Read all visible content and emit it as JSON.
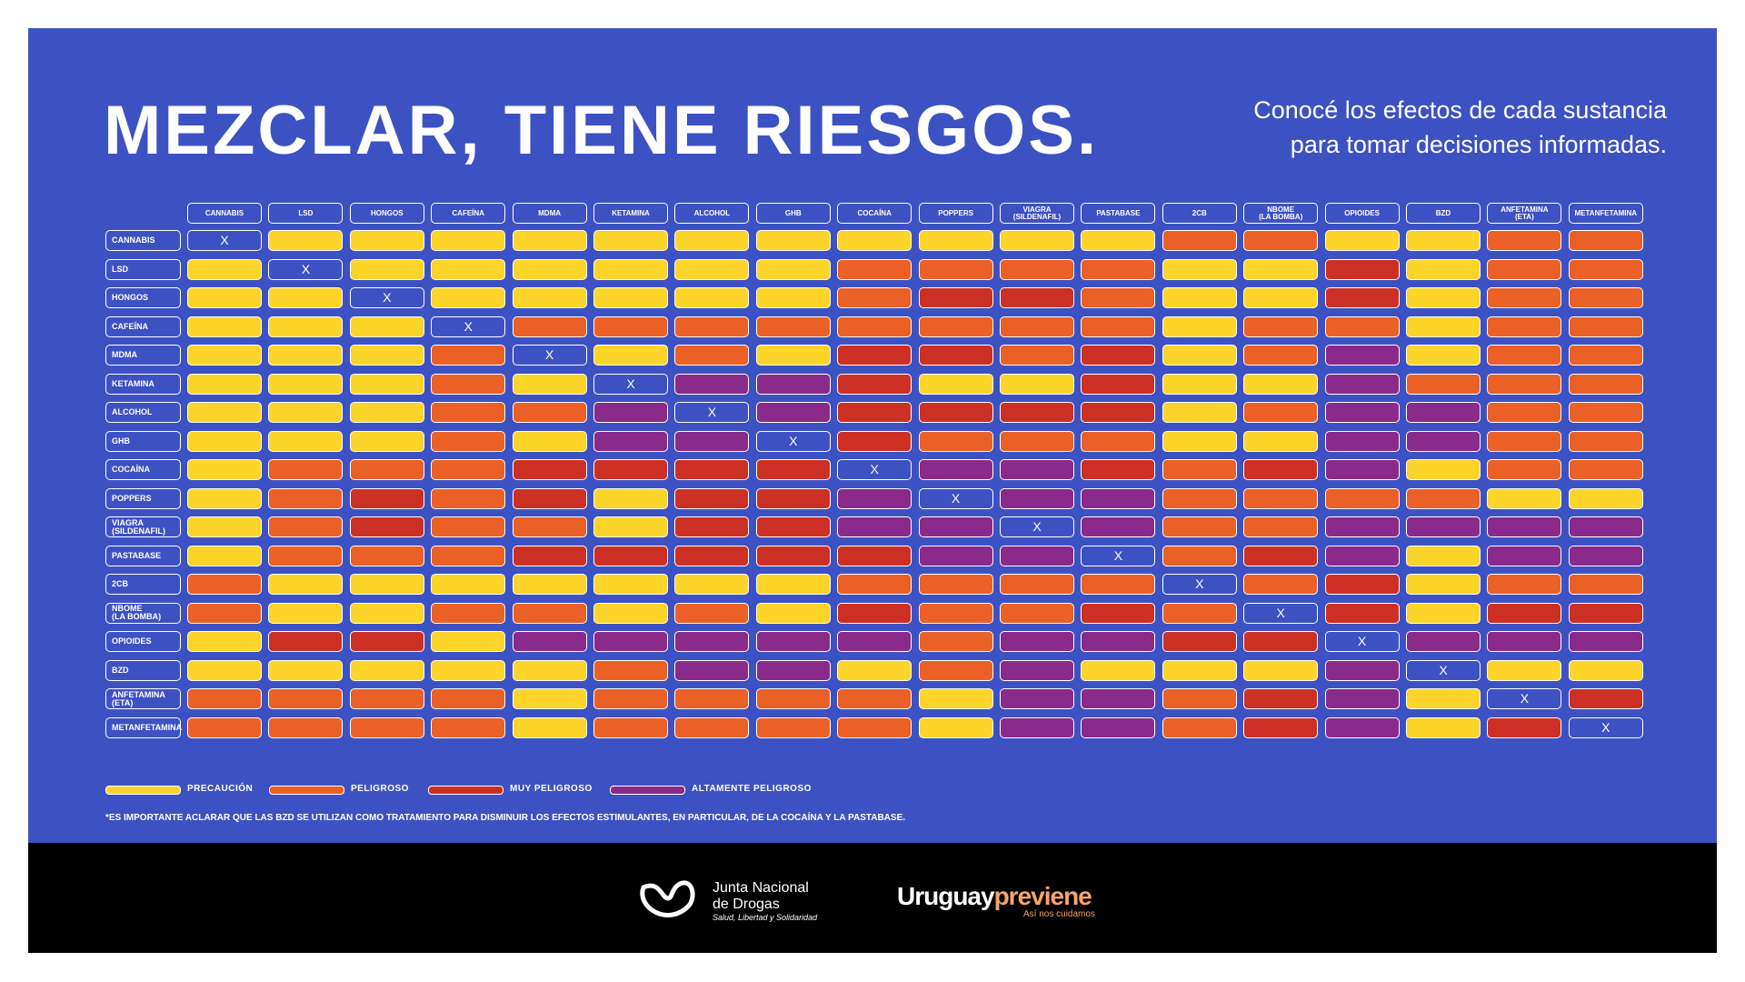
{
  "header": {
    "title": "MEZCLAR, TIENE RIESGOS.",
    "subtitle": [
      "Conocé los efectos de cada sustancia",
      "para tomar decisiones informadas."
    ]
  },
  "matrix": {
    "substances": [
      "CANNABIS",
      "LSD",
      "HONGOS",
      "CAFEÍNA",
      "MDMA",
      "KETAMINA",
      "ALCOHOL",
      "GHB",
      "COCAÍNA",
      "POPPERS",
      "VIAGRA\n(SILDENAFIL)",
      "PASTABASE",
      "2CB",
      "NBOME\n(LA BOMBA)",
      "OPIOIDES",
      "BZD",
      "ANFETAMINA\n(ETA)",
      "METANFETAMINA"
    ],
    "levels": [
      {
        "label": "PRECAUCIÓN",
        "color": "#fdd42a"
      },
      {
        "label": "PELIGROSO",
        "color": "#eb6027"
      },
      {
        "label": "MUY PELIGROSO",
        "color": "#cc3024"
      },
      {
        "label": "ALTAMENTE PELIGROSO",
        "color": "#8a2a8a"
      }
    ],
    "cells": [
      [
        "X",
        0,
        0,
        0,
        0,
        0,
        0,
        0,
        0,
        0,
        0,
        0,
        1,
        1,
        0,
        0,
        1,
        1
      ],
      [
        0,
        "X",
        0,
        0,
        0,
        0,
        0,
        0,
        1,
        1,
        1,
        1,
        0,
        0,
        2,
        0,
        1,
        1
      ],
      [
        0,
        0,
        "X",
        0,
        0,
        0,
        0,
        0,
        1,
        2,
        2,
        1,
        0,
        0,
        2,
        0,
        1,
        1
      ],
      [
        0,
        0,
        0,
        "X",
        1,
        1,
        1,
        1,
        1,
        1,
        1,
        1,
        0,
        1,
        1,
        0,
        1,
        1
      ],
      [
        0,
        0,
        0,
        1,
        "X",
        0,
        1,
        0,
        2,
        2,
        1,
        2,
        0,
        1,
        3,
        0,
        1,
        1
      ],
      [
        0,
        0,
        0,
        1,
        0,
        "X",
        3,
        3,
        2,
        0,
        0,
        2,
        0,
        0,
        3,
        1,
        1,
        1
      ],
      [
        0,
        0,
        0,
        1,
        1,
        3,
        "X",
        3,
        2,
        2,
        2,
        2,
        0,
        1,
        3,
        3,
        1,
        1
      ],
      [
        0,
        0,
        0,
        1,
        0,
        3,
        3,
        "X",
        2,
        1,
        1,
        1,
        0,
        0,
        3,
        3,
        1,
        1
      ],
      [
        0,
        1,
        1,
        1,
        2,
        2,
        2,
        2,
        "X",
        3,
        3,
        2,
        1,
        2,
        3,
        0,
        1,
        1
      ],
      [
        0,
        1,
        2,
        1,
        2,
        0,
        2,
        2,
        3,
        "X",
        3,
        3,
        1,
        1,
        1,
        1,
        0,
        0
      ],
      [
        0,
        1,
        2,
        1,
        1,
        0,
        2,
        2,
        3,
        3,
        "X",
        3,
        1,
        1,
        3,
        3,
        3,
        3
      ],
      [
        0,
        1,
        1,
        1,
        2,
        2,
        2,
        2,
        2,
        3,
        3,
        "X",
        1,
        2,
        3,
        0,
        3,
        3
      ],
      [
        1,
        0,
        0,
        0,
        0,
        0,
        0,
        0,
        1,
        1,
        1,
        1,
        "X",
        1,
        2,
        0,
        1,
        1
      ],
      [
        1,
        0,
        0,
        1,
        1,
        0,
        1,
        0,
        2,
        1,
        1,
        2,
        1,
        "X",
        2,
        0,
        2,
        2
      ],
      [
        0,
        2,
        2,
        0,
        3,
        3,
        3,
        3,
        3,
        1,
        3,
        3,
        2,
        2,
        "X",
        3,
        3,
        3
      ],
      [
        0,
        0,
        0,
        0,
        0,
        1,
        3,
        3,
        0,
        1,
        3,
        0,
        0,
        0,
        3,
        "X",
        0,
        0
      ],
      [
        1,
        1,
        1,
        1,
        0,
        1,
        1,
        1,
        1,
        0,
        3,
        3,
        1,
        2,
        3,
        0,
        "X",
        2
      ],
      [
        1,
        1,
        1,
        1,
        0,
        1,
        1,
        1,
        1,
        0,
        3,
        3,
        1,
        2,
        3,
        0,
        2,
        "X"
      ]
    ]
  },
  "note": "*ES IMPORTANTE ACLARAR QUE LAS BZD SE UTILIZAN COMO TRATAMIENTO PARA DISMINUIR LOS EFECTOS ESTIMULANTES, EN PARTICULAR, DE LA COCAÍNA Y LA PASTABASE.",
  "footer": {
    "jnd": [
      "Junta Nacional",
      "de Drogas"
    ],
    "jnd_tagline": "Salud, Libertad y Solidaridad",
    "brand_a": "Uruguay",
    "brand_b": "previene",
    "brand_tagline": "Así nos cuidamos"
  }
}
